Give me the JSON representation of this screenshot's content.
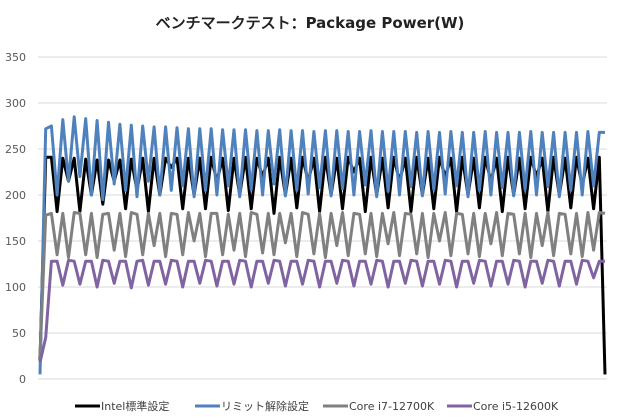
{
  "chart_data": {
    "type": "line",
    "title": "ベンチマークテスト：Package Power(W)",
    "xlabel": "",
    "ylabel": "",
    "ylim": [
      0,
      350
    ],
    "yticks": [
      0,
      50,
      100,
      150,
      200,
      250,
      300,
      350
    ],
    "grid": true,
    "legend_position": "bottom",
    "series": [
      {
        "name": "Intel標準設定",
        "color": "#000000",
        "values": [
          20,
          241,
          241,
          182,
          240,
          215,
          240,
          182,
          239,
          200,
          238,
          190,
          238,
          215,
          238,
          185,
          239,
          205,
          240,
          182,
          240,
          200,
          240,
          230,
          240,
          185,
          240,
          200,
          240,
          185,
          241,
          215,
          240,
          183,
          240,
          200,
          241,
          185,
          240,
          220,
          240,
          180,
          241,
          200,
          240,
          186,
          241,
          215,
          240,
          182,
          241,
          200,
          240,
          185,
          241,
          225,
          240,
          182,
          241,
          200,
          240,
          186,
          241,
          215,
          240,
          182,
          241,
          200,
          240,
          185,
          241,
          220,
          240,
          182,
          241,
          200,
          240,
          186,
          241,
          215,
          240,
          182,
          241,
          200,
          240,
          185,
          241,
          220,
          240,
          182,
          241,
          200,
          240,
          186,
          241,
          210,
          240,
          185,
          241,
          5
        ]
      },
      {
        "name": "リミット解除設定",
        "color": "#4f81bd",
        "values": [
          5,
          272,
          275,
          200,
          282,
          215,
          285,
          220,
          283,
          200,
          281,
          195,
          279,
          212,
          277,
          205,
          276,
          198,
          275,
          215,
          274,
          200,
          274,
          205,
          273,
          210,
          272,
          198,
          272,
          205,
          272,
          200,
          271,
          210,
          271,
          198,
          271,
          206,
          270,
          200,
          270,
          212,
          271,
          199,
          270,
          205,
          270,
          201,
          269,
          208,
          270,
          199,
          270,
          207,
          269,
          200,
          269,
          211,
          270,
          198,
          269,
          204,
          269,
          200,
          269,
          209,
          268,
          199,
          269,
          206,
          268,
          201,
          269,
          210,
          268,
          198,
          268,
          205,
          269,
          200,
          268,
          208,
          268,
          199,
          268,
          206,
          269,
          200,
          268,
          209,
          268,
          198,
          268,
          205,
          268,
          200,
          269,
          210,
          268,
          268
        ]
      },
      {
        "name": "Core i7-12700K",
        "color": "#808080",
        "values": [
          25,
          178,
          180,
          135,
          180,
          132,
          181,
          180,
          135,
          180,
          132,
          179,
          180,
          140,
          180,
          133,
          181,
          179,
          135,
          180,
          145,
          180,
          133,
          180,
          179,
          135,
          181,
          150,
          180,
          133,
          180,
          180,
          135,
          179,
          140,
          180,
          133,
          181,
          179,
          137,
          180,
          135,
          180,
          148,
          180,
          133,
          181,
          179,
          136,
          180,
          132,
          180,
          145,
          181,
          134,
          180,
          179,
          136,
          180,
          133,
          180,
          147,
          181,
          134,
          180,
          179,
          136,
          180,
          132,
          180,
          150,
          181,
          134,
          180,
          179,
          136,
          180,
          133,
          180,
          147,
          181,
          134,
          180,
          179,
          136,
          180,
          132,
          180,
          145,
          181,
          134,
          180,
          179,
          136,
          180,
          133,
          181,
          140,
          181,
          180
        ]
      },
      {
        "name": "Core i5-12600K",
        "color": "#8064a2",
        "values": [
          18,
          45,
          128,
          128,
          102,
          129,
          128,
          103,
          128,
          128,
          100,
          129,
          128,
          104,
          128,
          128,
          99,
          128,
          129,
          102,
          128,
          128,
          103,
          129,
          128,
          100,
          128,
          128,
          104,
          129,
          128,
          101,
          128,
          128,
          103,
          129,
          128,
          100,
          128,
          128,
          104,
          129,
          128,
          101,
          128,
          128,
          103,
          129,
          128,
          100,
          128,
          128,
          104,
          129,
          128,
          101,
          128,
          128,
          103,
          129,
          128,
          100,
          128,
          128,
          104,
          129,
          128,
          101,
          128,
          128,
          103,
          129,
          128,
          100,
          128,
          128,
          104,
          129,
          128,
          101,
          128,
          128,
          103,
          129,
          128,
          100,
          128,
          128,
          104,
          129,
          128,
          101,
          128,
          128,
          103,
          129,
          128,
          110,
          128,
          128
        ]
      }
    ]
  }
}
